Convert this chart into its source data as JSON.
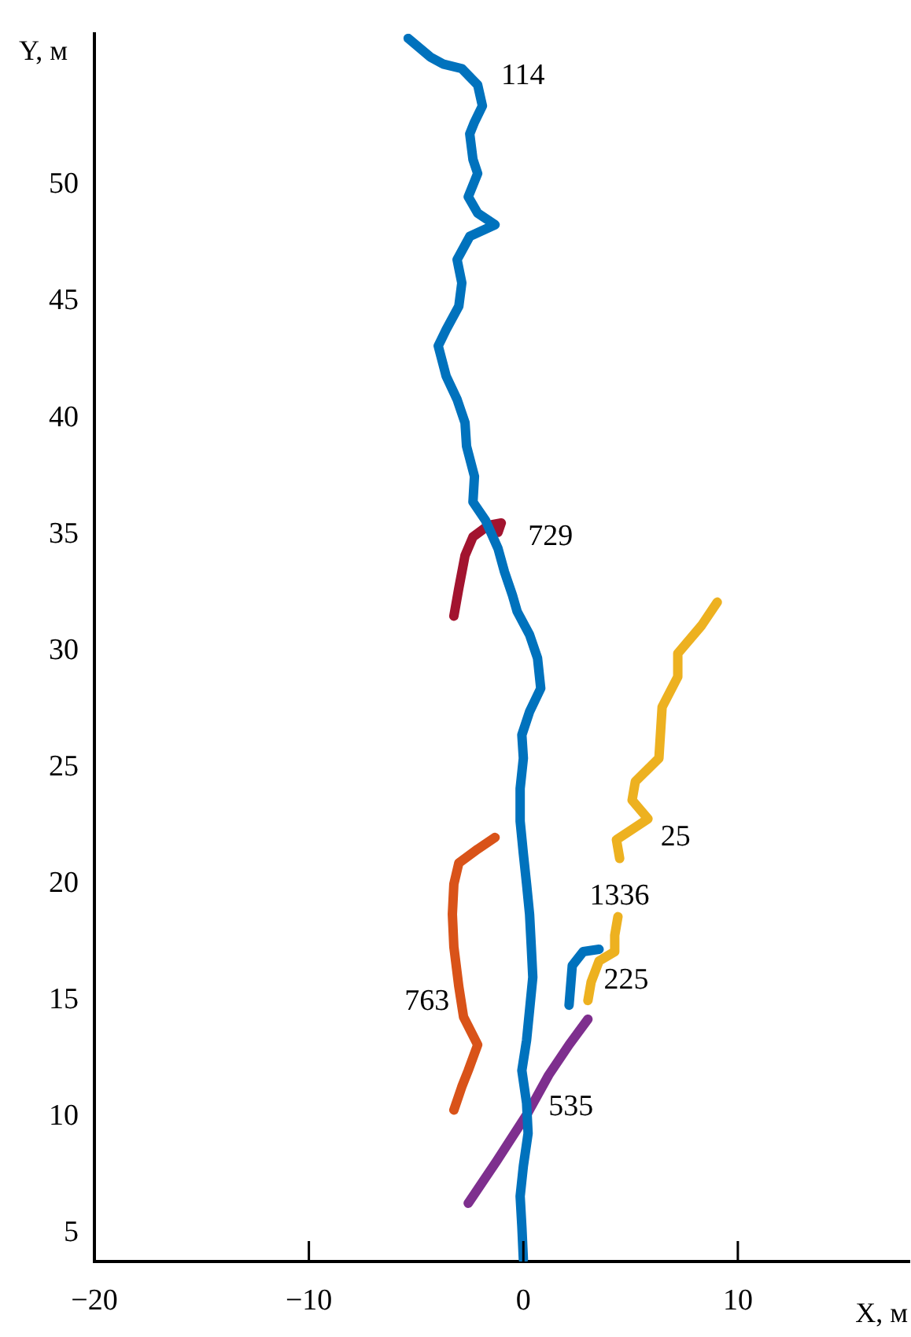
{
  "chart_data": {
    "type": "line",
    "xlabel": "X, м",
    "ylabel": "Y, м",
    "xlim": [
      -20,
      18
    ],
    "ylim": [
      3.8,
      56.5
    ],
    "xticks": [
      {
        "value": -20,
        "label": "−20"
      },
      {
        "value": -10,
        "label": "−10"
      },
      {
        "value": 0,
        "label": "0"
      },
      {
        "value": 10,
        "label": "10"
      }
    ],
    "yticks": [
      5,
      10,
      15,
      20,
      25,
      30,
      35,
      40,
      45,
      50
    ],
    "grid": false,
    "legend": false,
    "marker": "none",
    "line_style": "solid",
    "series": [
      {
        "name": "114",
        "color": "#0072bd",
        "x": [
          -5.37,
          -4.34,
          -3.75,
          -2.87,
          -2.13,
          -1.91,
          -2.28,
          -2.5,
          -2.35,
          -2.13,
          -2.57,
          -2.13,
          -1.32,
          -2.5,
          -3.09,
          -2.87,
          -3.01,
          -3.6,
          -3.97,
          -3.6,
          -3.09,
          -2.72,
          -2.65,
          -2.28,
          -2.35,
          -1.76,
          -1.18,
          -0.88,
          -0.51,
          -0.29,
          0.29,
          0.66,
          0.81,
          0.29,
          -0.07,
          0,
          -0.15,
          -0.15,
          0,
          0.15,
          0.29,
          0.37,
          0.44,
          0.29,
          0.15,
          -0.07,
          0.15,
          0.22,
          0,
          -0.15,
          -0.07,
          0
        ],
        "values": [
          56.3,
          55.5,
          55.2,
          55.0,
          54.3,
          53.4,
          52.7,
          52.2,
          51.1,
          50.5,
          49.5,
          48.8,
          48.3,
          47.8,
          46.8,
          45.8,
          44.8,
          43.8,
          43.1,
          41.8,
          40.8,
          39.8,
          38.8,
          37.5,
          36.4,
          35.6,
          34.4,
          33.4,
          32.4,
          31.7,
          30.7,
          29.7,
          28.4,
          27.4,
          26.4,
          25.4,
          24.1,
          22.7,
          21.3,
          20.0,
          18.7,
          17.3,
          16.0,
          14.6,
          13.3,
          12.0,
          10.6,
          9.3,
          7.9,
          6.6,
          5.3,
          3.9
        ]
      },
      {
        "name": "729",
        "color": "#a2142f",
        "x": [
          -3.24,
          -3.01,
          -2.72,
          -2.35,
          -1.62,
          -1.03,
          -1.18
        ],
        "values": [
          31.5,
          32.7,
          34.1,
          34.9,
          35.4,
          35.5,
          35.1
        ]
      },
      {
        "name": "25",
        "color": "#edb120",
        "x": [
          9.04,
          8.31,
          7.2,
          7.2,
          6.47,
          6.32,
          5.22,
          5.07,
          5.81,
          4.34,
          4.49
        ],
        "values": [
          32.1,
          31.1,
          29.9,
          28.9,
          27.6,
          25.4,
          24.4,
          23.6,
          22.8,
          21.9,
          21.1
        ]
      },
      {
        "name": "1336",
        "color": "#edb120",
        "x": [
          4.41,
          4.26,
          4.26,
          3.53,
          3.16,
          3.01
        ],
        "values": [
          18.6,
          17.8,
          17.1,
          16.7,
          15.8,
          15.0
        ]
      },
      {
        "name": "225",
        "color": "#0072bd",
        "x": [
          2.13,
          2.28,
          2.79,
          3.53
        ],
        "values": [
          14.8,
          16.5,
          17.1,
          17.2
        ]
      },
      {
        "name": "763",
        "color": "#d95319",
        "x": [
          -1.32,
          -2.13,
          -3.01,
          -3.24,
          -3.31,
          -3.24,
          -3.01,
          -2.79,
          -2.13,
          -2.57,
          -2.87,
          -3.24
        ],
        "values": [
          22.0,
          21.5,
          20.9,
          20.0,
          18.7,
          17.3,
          15.6,
          14.3,
          13.1,
          12.0,
          11.3,
          10.3
        ]
      },
      {
        "name": "535",
        "color": "#7e2f8e",
        "x": [
          3.01,
          2.13,
          1.18,
          0.22,
          -1.25,
          -2.57
        ],
        "values": [
          14.2,
          13.1,
          11.8,
          10.2,
          8.1,
          6.3
        ]
      }
    ]
  }
}
